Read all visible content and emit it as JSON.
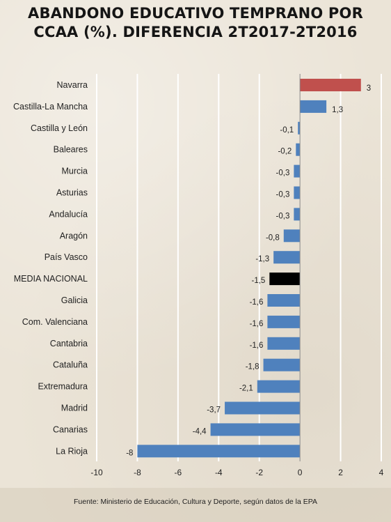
{
  "chart_data": {
    "type": "bar",
    "orientation": "horizontal",
    "title": "ABANDONO EDUCATIVO TEMPRANO POR CCAA (%). DIFERENCIA 2T2017-2T2016",
    "categories": [
      "Navarra",
      "Castilla-La Mancha",
      "Castilla y León",
      "Baleares",
      "Murcia",
      "Asturias",
      "Andalucía",
      "Aragón",
      "País Vasco",
      "MEDIA NACIONAL",
      "Galicia",
      "Com. Valenciana",
      "Cantabria",
      "Cataluña",
      "Extremadura",
      "Madrid",
      "Canarias",
      "La Rioja"
    ],
    "values": [
      3,
      1.3,
      -0.1,
      -0.2,
      -0.3,
      -0.3,
      -0.3,
      -0.8,
      -1.3,
      -1.5,
      -1.6,
      -1.6,
      -1.6,
      -1.8,
      -2.1,
      -3.7,
      -4.4,
      -8
    ],
    "value_labels": [
      "3",
      "1,3",
      "-0,1",
      "-0,2",
      "-0,3",
      "-0,3",
      "-0,3",
      "-0,8",
      "-1,3",
      "-1,5",
      "-1,6",
      "-1,6",
      "-1,6",
      "-1,8",
      "-2,1",
      "-3,7",
      "-4,4",
      "-8"
    ],
    "bar_colors": [
      "#c0504d",
      "#4f81bd",
      "#4f81bd",
      "#4f81bd",
      "#4f81bd",
      "#4f81bd",
      "#4f81bd",
      "#4f81bd",
      "#4f81bd",
      "#000000",
      "#4f81bd",
      "#4f81bd",
      "#4f81bd",
      "#4f81bd",
      "#4f81bd",
      "#4f81bd",
      "#4f81bd",
      "#4f81bd"
    ],
    "xlim": [
      -10,
      4
    ],
    "xticks": [
      -10,
      -8,
      -6,
      -4,
      -2,
      0,
      2,
      4
    ],
    "grid": true,
    "legend": "none"
  },
  "source": "Fuente: Ministerio de Educación, Cultura y Deporte, según datos de la EPA"
}
